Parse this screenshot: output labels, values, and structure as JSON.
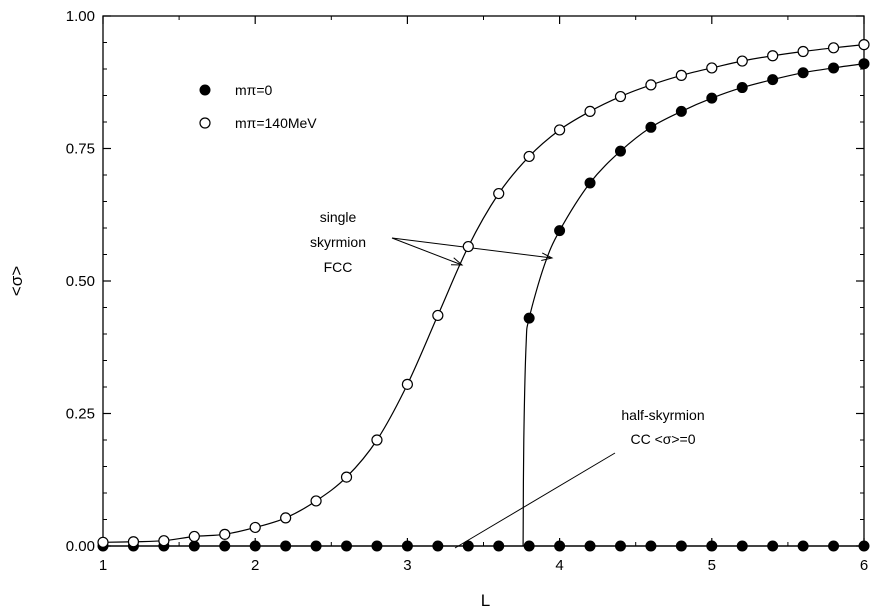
{
  "chart_data": {
    "type": "scatter",
    "xlabel": "L",
    "ylabel": "<σ>",
    "xlim": [
      1,
      6
    ],
    "ylim": [
      0,
      1
    ],
    "x_ticks": [
      1,
      2,
      3,
      4,
      5,
      6
    ],
    "x_tick_labels": [
      "1",
      "2",
      "3",
      "4",
      "5",
      "6"
    ],
    "y_ticks": [
      0,
      0.25,
      0.5,
      0.75,
      1.0
    ],
    "y_tick_labels": [
      "0.00",
      "0.25",
      "0.50",
      "0.75",
      "1.00"
    ],
    "grid": false,
    "legend_position": "top-left",
    "series": [
      {
        "name": "mπ=0",
        "marker": "filled-circle",
        "points": [
          [
            1.0,
            0.0
          ],
          [
            1.2,
            0.0
          ],
          [
            1.4,
            0.0
          ],
          [
            1.6,
            0.0
          ],
          [
            1.8,
            0.0
          ],
          [
            2.0,
            0.0
          ],
          [
            2.2,
            0.0
          ],
          [
            2.4,
            0.0
          ],
          [
            2.6,
            0.0
          ],
          [
            2.8,
            0.0
          ],
          [
            3.0,
            0.0
          ],
          [
            3.2,
            0.0
          ],
          [
            3.4,
            0.0
          ],
          [
            3.6,
            0.0
          ],
          [
            3.8,
            0.0
          ],
          [
            4.0,
            0.0
          ],
          [
            4.2,
            0.0
          ],
          [
            4.4,
            0.0
          ],
          [
            4.6,
            0.0
          ],
          [
            4.8,
            0.0
          ],
          [
            5.0,
            0.0
          ],
          [
            5.2,
            0.0
          ],
          [
            5.4,
            0.0
          ],
          [
            5.6,
            0.0
          ],
          [
            5.8,
            0.0
          ],
          [
            6.0,
            0.0
          ],
          [
            3.8,
            0.43
          ],
          [
            4.0,
            0.595
          ],
          [
            4.2,
            0.685
          ],
          [
            4.4,
            0.745
          ],
          [
            4.6,
            0.79
          ],
          [
            4.8,
            0.82
          ],
          [
            5.0,
            0.845
          ],
          [
            5.2,
            0.865
          ],
          [
            5.4,
            0.88
          ],
          [
            5.6,
            0.893
          ],
          [
            5.8,
            0.902
          ],
          [
            6.0,
            0.91
          ]
        ],
        "curve": [
          [
            3.76,
            0.0
          ],
          [
            3.765,
            0.2
          ],
          [
            3.78,
            0.38
          ],
          [
            3.8,
            0.43
          ],
          [
            3.9,
            0.53
          ],
          [
            4.0,
            0.595
          ],
          [
            4.2,
            0.685
          ],
          [
            4.4,
            0.745
          ],
          [
            4.6,
            0.79
          ],
          [
            4.8,
            0.82
          ],
          [
            5.0,
            0.845
          ],
          [
            5.2,
            0.865
          ],
          [
            5.4,
            0.88
          ],
          [
            5.6,
            0.893
          ],
          [
            5.8,
            0.902
          ],
          [
            6.0,
            0.91
          ]
        ]
      },
      {
        "name": "mπ=140MeV",
        "marker": "open-circle",
        "points": [
          [
            1.0,
            0.007
          ],
          [
            1.2,
            0.008
          ],
          [
            1.4,
            0.01
          ],
          [
            1.6,
            0.018
          ],
          [
            1.8,
            0.022
          ],
          [
            2.0,
            0.035
          ],
          [
            2.2,
            0.053
          ],
          [
            2.4,
            0.085
          ],
          [
            2.6,
            0.13
          ],
          [
            2.8,
            0.2
          ],
          [
            3.0,
            0.305
          ],
          [
            3.2,
            0.435
          ],
          [
            3.4,
            0.565
          ],
          [
            3.6,
            0.665
          ],
          [
            3.8,
            0.735
          ],
          [
            4.0,
            0.785
          ],
          [
            4.2,
            0.82
          ],
          [
            4.4,
            0.848
          ],
          [
            4.6,
            0.87
          ],
          [
            4.8,
            0.888
          ],
          [
            5.0,
            0.902
          ],
          [
            5.2,
            0.915
          ],
          [
            5.4,
            0.925
          ],
          [
            5.6,
            0.933
          ],
          [
            5.8,
            0.94
          ],
          [
            6.0,
            0.946
          ]
        ]
      }
    ],
    "annotations": [
      {
        "lines": [
          "single",
          "skyrmion",
          "FCC"
        ]
      },
      {
        "lines": [
          "half-skyrmion",
          "CC  <σ>=0"
        ]
      }
    ]
  }
}
